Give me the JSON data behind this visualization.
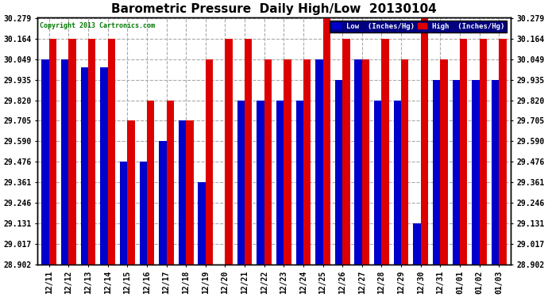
{
  "title": "Barometric Pressure  Daily High/Low  20130104",
  "copyright": "Copyright 2013 Cartronics.com",
  "legend_low": "Low  (Inches/Hg)",
  "legend_high": "High  (Inches/Hg)",
  "categories": [
    "12/11",
    "12/12",
    "12/13",
    "12/14",
    "12/15",
    "12/16",
    "12/17",
    "12/18",
    "12/19",
    "12/20",
    "12/21",
    "12/22",
    "12/23",
    "12/24",
    "12/25",
    "12/26",
    "12/27",
    "12/28",
    "12/29",
    "12/30",
    "12/31",
    "01/01",
    "01/02",
    "01/03"
  ],
  "low_values": [
    30.049,
    30.049,
    30.004,
    30.004,
    29.476,
    29.476,
    29.59,
    29.705,
    29.361,
    28.902,
    29.82,
    29.82,
    29.82,
    29.82,
    30.049,
    29.935,
    30.049,
    29.82,
    29.82,
    29.131,
    29.935,
    29.935,
    29.935,
    29.935
  ],
  "high_values": [
    30.164,
    30.164,
    30.164,
    30.164,
    29.705,
    29.82,
    29.82,
    29.705,
    30.049,
    30.164,
    30.164,
    30.049,
    30.049,
    30.049,
    30.279,
    30.164,
    30.049,
    30.164,
    30.049,
    30.279,
    30.049,
    30.164,
    30.164,
    30.164
  ],
  "ymin": 28.902,
  "ymax": 30.279,
  "yticks": [
    28.902,
    29.017,
    29.131,
    29.246,
    29.361,
    29.476,
    29.59,
    29.705,
    29.82,
    29.935,
    30.049,
    30.164,
    30.279
  ],
  "color_low": "#0000cc",
  "color_high": "#dd0000",
  "bg_color": "#ffffff",
  "plot_bg": "#ffffff",
  "grid_color": "#aaaaaa",
  "title_fontsize": 11,
  "tick_fontsize": 7,
  "bar_width": 0.38
}
